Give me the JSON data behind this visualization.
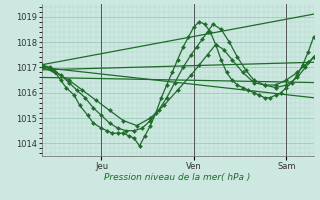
{
  "bg_color": "#cce8e0",
  "grid_color_major": "#88bbaa",
  "grid_color_minor": "#aad4c8",
  "line_color": "#1e6b2a",
  "xlabel": "Pression niveau de la mer( hPa )",
  "xlabel_color": "#1e6b2a",
  "ylim": [
    1013.5,
    1019.5
  ],
  "yticks": [
    1014,
    1015,
    1016,
    1017,
    1018,
    1019
  ],
  "xlim": [
    0.0,
    1.0
  ],
  "day_labels": [
    "Jeu",
    "Ven",
    "Sam"
  ],
  "day_positions": [
    0.22,
    0.56,
    0.9
  ],
  "lines": [
    {
      "x": [
        0.0,
        1.0
      ],
      "y": [
        1017.1,
        1019.1
      ],
      "lw": 0.9,
      "marker": null
    },
    {
      "x": [
        0.0,
        1.0
      ],
      "y": [
        1016.9,
        1017.2
      ],
      "lw": 0.9,
      "marker": null
    },
    {
      "x": [
        0.0,
        1.0
      ],
      "y": [
        1016.6,
        1016.4
      ],
      "lw": 0.9,
      "marker": null
    },
    {
      "x": [
        0.0,
        1.0
      ],
      "y": [
        1017.0,
        1015.8
      ],
      "lw": 0.9,
      "marker": null
    },
    {
      "x": [
        0.0,
        0.03,
        0.05,
        0.07,
        0.09,
        0.12,
        0.14,
        0.17,
        0.19,
        0.22,
        0.24,
        0.26,
        0.28,
        0.3,
        0.32,
        0.34,
        0.36,
        0.38,
        0.4,
        0.42,
        0.44,
        0.46,
        0.48,
        0.5,
        0.52,
        0.54,
        0.56,
        0.58,
        0.6,
        0.62,
        0.64,
        0.66,
        0.68,
        0.7,
        0.72,
        0.74,
        0.76,
        0.78,
        0.8,
        0.82,
        0.84,
        0.86,
        0.88,
        0.9,
        0.92,
        0.94,
        0.96,
        0.98,
        1.0
      ],
      "y": [
        1017.1,
        1017.0,
        1016.8,
        1016.5,
        1016.2,
        1015.9,
        1015.5,
        1015.1,
        1014.8,
        1014.6,
        1014.5,
        1014.4,
        1014.4,
        1014.4,
        1014.3,
        1014.2,
        1013.9,
        1014.3,
        1014.7,
        1015.2,
        1015.8,
        1016.3,
        1016.8,
        1017.3,
        1017.8,
        1018.2,
        1018.6,
        1018.8,
        1018.7,
        1018.4,
        1017.9,
        1017.3,
        1016.8,
        1016.5,
        1016.3,
        1016.2,
        1016.1,
        1016.0,
        1015.9,
        1015.8,
        1015.8,
        1015.9,
        1016.0,
        1016.2,
        1016.4,
        1016.7,
        1017.1,
        1017.6,
        1018.2
      ],
      "lw": 0.9,
      "marker": "D",
      "ms": 2.2
    },
    {
      "x": [
        0.0,
        0.04,
        0.07,
        0.1,
        0.13,
        0.16,
        0.19,
        0.22,
        0.25,
        0.28,
        0.31,
        0.34,
        0.37,
        0.4,
        0.43,
        0.46,
        0.49,
        0.52,
        0.55,
        0.57,
        0.59,
        0.61,
        0.63,
        0.66,
        0.69,
        0.72,
        0.75,
        0.78,
        0.82,
        0.86,
        0.9,
        0.94,
        0.97,
        1.0
      ],
      "y": [
        1017.1,
        1016.9,
        1016.7,
        1016.4,
        1016.1,
        1015.8,
        1015.4,
        1015.1,
        1014.8,
        1014.6,
        1014.5,
        1014.5,
        1014.6,
        1014.9,
        1015.3,
        1015.8,
        1016.4,
        1017.0,
        1017.5,
        1017.8,
        1018.1,
        1018.4,
        1018.7,
        1018.5,
        1018.0,
        1017.4,
        1016.9,
        1016.5,
        1016.3,
        1016.2,
        1016.3,
        1016.6,
        1017.0,
        1017.4
      ],
      "lw": 0.9,
      "marker": "D",
      "ms": 2.2
    },
    {
      "x": [
        0.0,
        0.05,
        0.1,
        0.15,
        0.2,
        0.25,
        0.3,
        0.35,
        0.4,
        0.45,
        0.5,
        0.55,
        0.58,
        0.61,
        0.64,
        0.67,
        0.7,
        0.74,
        0.78,
        0.82,
        0.86,
        0.9,
        0.94,
        0.98,
        1.0
      ],
      "y": [
        1017.0,
        1016.8,
        1016.5,
        1016.1,
        1015.7,
        1015.3,
        1014.9,
        1014.7,
        1015.0,
        1015.5,
        1016.1,
        1016.7,
        1017.1,
        1017.5,
        1017.9,
        1017.7,
        1017.3,
        1016.8,
        1016.4,
        1016.3,
        1016.3,
        1016.5,
        1016.8,
        1017.2,
        1017.4
      ],
      "lw": 0.9,
      "marker": "D",
      "ms": 2.2
    }
  ]
}
